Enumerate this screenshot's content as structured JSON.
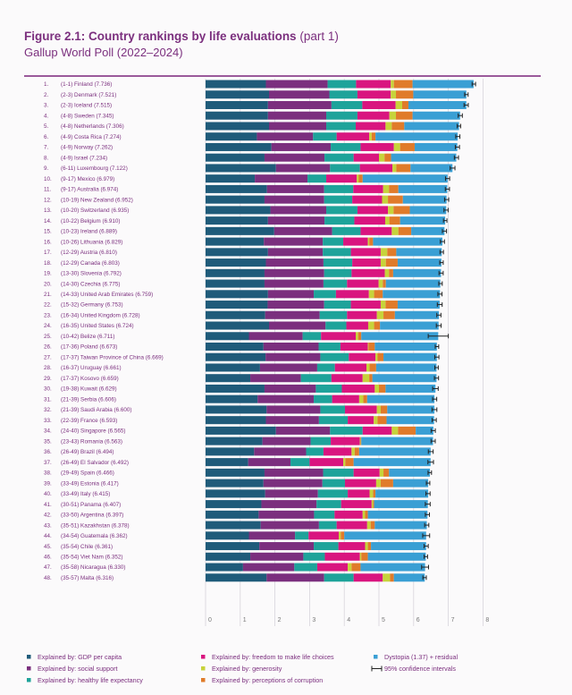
{
  "header": {
    "title": "Figure 2.1: Country rankings by life evaluations",
    "title_suffix": "(part 1)",
    "subtitle": "Gallup World Poll (2022–2024)"
  },
  "chart_data": {
    "type": "bar",
    "orientation": "horizontal",
    "stacked": true,
    "xlim": [
      0,
      8
    ],
    "x_ticks": [
      "0",
      "1",
      "2",
      "3",
      "4",
      "5",
      "6",
      "7",
      "8"
    ],
    "grid": true,
    "legend_placement": "bottom",
    "categories": [
      "(1-1) Finland (7.736)",
      "(2-3) Denmark (7.521)",
      "(2-3) Iceland (7.515)",
      "(4-8) Sweden (7.345)",
      "(4-8) Netherlands (7.306)",
      "(4-9) Costa Rica (7.274)",
      "(4-9) Norway (7.262)",
      "(4-9) Israel (7.234)",
      "(6-11) Luxembourg (7.122)",
      "(9-17) Mexico (6.979)",
      "(9-17) Australia (6.974)",
      "(10-19) New Zealand (6.952)",
      "(10-20) Switzerland (6.935)",
      "(10-22) Belgium (6.910)",
      "(10-23) Ireland (6.889)",
      "(10-26) Lithuania (6.829)",
      "(12-29) Austria (6.810)",
      "(12-29) Canada (6.803)",
      "(13-30) Slovenia (6.792)",
      "(14-30) Czechia (6.775)",
      "(14-33) United Arab Emirates (6.759)",
      "(15-32) Germany (6.753)",
      "(16-34) United Kingdom (6.728)",
      "(16-35) United States (6.724)",
      "(10-42) Belize (6.711)",
      "(17-36) Poland (6.673)",
      "(17-37) Taiwan Province of China (6.669)",
      "(16-37) Uruguay (6.661)",
      "(17-37) Kosovo (6.659)",
      "(19-38) Kuwait (6.629)",
      "(21-39) Serbia (6.606)",
      "(21-39) Saudi Arabia (6.600)",
      "(22-39) France (6.593)",
      "(24-40) Singapore (6.565)",
      "(23-43) Romania (6.563)",
      "(26-49) Brazil (6.494)",
      "(26-49) El Salvador (6.492)",
      "(29-49) Spain (6.466)",
      "(33-49) Estonia (6.417)",
      "(33-49) Italy (6.415)",
      "(30-51) Panama (6.407)",
      "(33-50) Argentina (6.397)",
      "(35-51) Kazakhstan (6.378)",
      "(34-54) Guatemala (6.362)",
      "(35-54) Chile (6.361)",
      "(35-54) Viet Nam (6.352)",
      "(35-58) Nicaragua (6.330)",
      "(35-57) Malta (6.316)"
    ],
    "ranks": [
      "1.",
      "2.",
      "3.",
      "4.",
      "5.",
      "6.",
      "7.",
      "8.",
      "9.",
      "10.",
      "11.",
      "12.",
      "13.",
      "14.",
      "15.",
      "16.",
      "17.",
      "18.",
      "19.",
      "20.",
      "21.",
      "22.",
      "23.",
      "24.",
      "25.",
      "26.",
      "27.",
      "28.",
      "29.",
      "30.",
      "31.",
      "32.",
      "33.",
      "34.",
      "35.",
      "36.",
      "37.",
      "38.",
      "39.",
      "40.",
      "41.",
      "42.",
      "43.",
      "44.",
      "45.",
      "46.",
      "47.",
      "48."
    ],
    "scores": [
      7.736,
      7.521,
      7.515,
      7.345,
      7.306,
      7.274,
      7.262,
      7.234,
      7.122,
      6.979,
      6.974,
      6.952,
      6.935,
      6.91,
      6.889,
      6.829,
      6.81,
      6.803,
      6.792,
      6.775,
      6.759,
      6.753,
      6.728,
      6.724,
      6.711,
      6.673,
      6.669,
      6.661,
      6.659,
      6.629,
      6.606,
      6.6,
      6.593,
      6.565,
      6.563,
      6.494,
      6.492,
      6.466,
      6.417,
      6.415,
      6.407,
      6.397,
      6.378,
      6.362,
      6.361,
      6.352,
      6.33,
      6.316
    ],
    "ci_halfwidth": [
      0.05,
      0.05,
      0.06,
      0.06,
      0.05,
      0.06,
      0.06,
      0.06,
      0.07,
      0.06,
      0.06,
      0.06,
      0.06,
      0.05,
      0.06,
      0.06,
      0.05,
      0.05,
      0.06,
      0.05,
      0.06,
      0.07,
      0.06,
      0.07,
      0.29,
      0.05,
      0.06,
      0.05,
      0.06,
      0.08,
      0.06,
      0.07,
      0.06,
      0.06,
      0.06,
      0.07,
      0.08,
      0.05,
      0.05,
      0.06,
      0.07,
      0.06,
      0.06,
      0.1,
      0.06,
      0.05,
      0.1,
      0.05
    ],
    "series": [
      {
        "name": "Explained by: GDP per capita",
        "color": "#1f5b7a",
        "values": [
          1.74,
          1.83,
          1.8,
          1.8,
          1.83,
          1.48,
          1.9,
          1.7,
          2.03,
          1.42,
          1.77,
          1.7,
          1.87,
          1.8,
          1.98,
          1.68,
          1.8,
          1.74,
          1.7,
          1.7,
          1.8,
          1.79,
          1.72,
          1.83,
          1.25,
          1.67,
          1.73,
          1.57,
          1.29,
          1.7,
          1.5,
          1.76,
          1.74,
          2.03,
          1.64,
          1.4,
          1.23,
          1.7,
          1.67,
          1.72,
          1.61,
          1.53,
          1.59,
          1.25,
          1.55,
          1.29,
          1.08,
          1.76
        ]
      },
      {
        "name": "Explained by: social support",
        "color": "#7b2f7e",
        "values": [
          1.78,
          1.74,
          1.83,
          1.68,
          1.65,
          1.62,
          1.71,
          1.73,
          1.56,
          1.52,
          1.65,
          1.72,
          1.61,
          1.63,
          1.67,
          1.7,
          1.58,
          1.66,
          1.72,
          1.7,
          1.32,
          1.63,
          1.57,
          1.63,
          1.55,
          1.59,
          1.58,
          1.65,
          1.46,
          1.48,
          1.62,
          1.55,
          1.53,
          1.56,
          1.39,
          1.5,
          1.22,
          1.69,
          1.7,
          1.52,
          1.59,
          1.6,
          1.68,
          1.33,
          1.57,
          1.53,
          1.48,
          1.66
        ]
      },
      {
        "name": "Explained by: healthy life expectancy",
        "color": "#1ea39a",
        "values": [
          0.82,
          0.81,
          0.89,
          0.9,
          0.85,
          0.68,
          0.86,
          0.84,
          0.86,
          0.54,
          0.84,
          0.81,
          0.9,
          0.86,
          0.82,
          0.59,
          0.81,
          0.83,
          0.79,
          0.68,
          0.64,
          0.77,
          0.79,
          0.6,
          0.53,
          0.63,
          0.82,
          0.51,
          0.88,
          0.75,
          0.53,
          0.71,
          0.83,
          0.94,
          0.58,
          0.5,
          0.55,
          0.88,
          0.65,
          0.86,
          0.71,
          0.59,
          0.51,
          0.39,
          0.71,
          0.62,
          0.66,
          0.85
        ]
      },
      {
        "name": "Explained by: freedom to make life choices",
        "color": "#d9157f",
        "values": [
          1.0,
          0.96,
          0.96,
          0.92,
          0.86,
          0.94,
          0.96,
          0.73,
          0.94,
          0.88,
          0.86,
          0.86,
          0.88,
          0.89,
          0.9,
          0.71,
          0.86,
          0.82,
          0.96,
          0.91,
          0.95,
          0.86,
          0.86,
          0.63,
          1.0,
          0.79,
          0.77,
          0.91,
          0.9,
          0.95,
          0.78,
          0.92,
          0.75,
          0.84,
          0.84,
          0.81,
          0.97,
          0.75,
          0.9,
          0.63,
          0.88,
          0.81,
          0.88,
          0.87,
          0.77,
          1.01,
          0.88,
          0.84
        ]
      },
      {
        "name": "Explained by: generosity",
        "color": "#c7d33b",
        "values": [
          0.09,
          0.15,
          0.19,
          0.19,
          0.18,
          0.07,
          0.18,
          0.16,
          0.11,
          0.06,
          0.17,
          0.17,
          0.16,
          0.12,
          0.19,
          0.04,
          0.19,
          0.15,
          0.12,
          0.12,
          0.15,
          0.14,
          0.19,
          0.17,
          0.07,
          0.02,
          0.06,
          0.09,
          0.19,
          0.12,
          0.12,
          0.11,
          0.11,
          0.18,
          0.02,
          0.09,
          0.06,
          0.11,
          0.13,
          0.1,
          0.04,
          0.07,
          0.1,
          0.06,
          0.08,
          0.04,
          0.11,
          0.21
        ]
      },
      {
        "name": "Explained by: perceptions of corruption",
        "color": "#e07b2a",
        "values": [
          0.54,
          0.5,
          0.18,
          0.48,
          0.36,
          0.11,
          0.42,
          0.19,
          0.41,
          0.11,
          0.27,
          0.43,
          0.47,
          0.31,
          0.37,
          0.11,
          0.26,
          0.34,
          0.12,
          0.09,
          0.25,
          0.35,
          0.33,
          0.17,
          0.09,
          0.18,
          0.17,
          0.19,
          0.09,
          0.19,
          0.11,
          0.19,
          0.26,
          0.51,
          0.02,
          0.13,
          0.24,
          0.16,
          0.36,
          0.07,
          0.03,
          0.08,
          0.12,
          0.1,
          0.09,
          0.19,
          0.26,
          0.11
        ]
      },
      {
        "name": "Dystopia (1.37) + residual",
        "color": "#3a9fd4",
        "values": [
          1.76,
          1.53,
          1.67,
          1.37,
          1.58,
          2.37,
          1.23,
          1.88,
          1.21,
          2.45,
          1.41,
          1.26,
          1.05,
          1.3,
          0.96,
          2.0,
          1.31,
          1.26,
          1.38,
          1.57,
          1.65,
          1.21,
          1.27,
          1.69,
          2.22,
          1.79,
          1.54,
          1.74,
          1.85,
          1.44,
          1.94,
          1.36,
          1.37,
          0.51,
          2.07,
          2.06,
          2.22,
          1.18,
          1.01,
          1.52,
          1.55,
          1.72,
          1.5,
          2.36,
          1.59,
          1.67,
          1.86,
          0.89
        ]
      }
    ],
    "ci_legend": "95% confidence intervals"
  }
}
